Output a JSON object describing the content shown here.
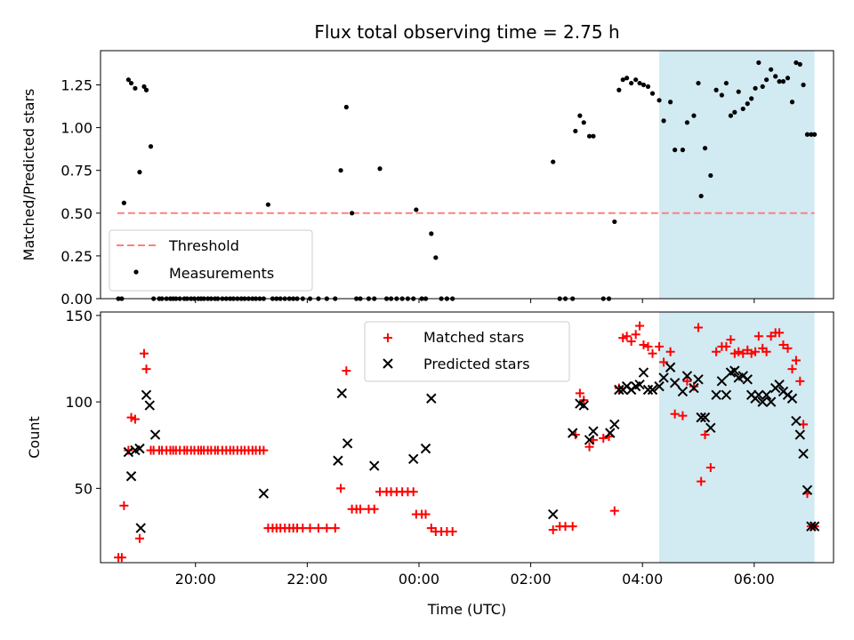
{
  "title": "Flux total observing time = 2.75 h",
  "xlabel": "Time (UTC)",
  "x_ticks": [
    "20:00",
    "22:00",
    "00:00",
    "02:00",
    "04:00",
    "06:00"
  ],
  "x_tick_hours": [
    20,
    22,
    24,
    26,
    28,
    30
  ],
  "xlim_hours": [
    18.3,
    31.42
  ],
  "shaded_region_hours": [
    28.3,
    31.08
  ],
  "colors": {
    "matched": "#ff0000",
    "predicted": "#000000",
    "threshold": "#ff8080",
    "shade": "#add8e6",
    "measurement": "#000000"
  },
  "chart_data": [
    {
      "type": "scatter",
      "ylabel": "Matched/Predicted stars",
      "ylim": [
        0,
        1.45
      ],
      "y_ticks": [
        "0.00",
        "0.25",
        "0.50",
        "0.75",
        "1.00",
        "1.25"
      ],
      "y_tick_values": [
        0,
        0.25,
        0.5,
        0.75,
        1.0,
        1.25
      ],
      "legend": {
        "placement": "lower-left",
        "entries": [
          "Threshold",
          "Measurements"
        ]
      },
      "threshold": {
        "name": "Threshold",
        "value": 0.5,
        "x_range_hours": [
          18.6,
          31.08
        ]
      },
      "series": [
        {
          "name": "Measurements",
          "x": [
            18.62,
            18.68,
            18.72,
            18.8,
            18.85,
            18.92,
            19.0,
            19.08,
            19.12,
            19.2,
            19.25,
            19.35,
            19.4,
            19.48,
            19.55,
            19.6,
            19.65,
            19.72,
            19.8,
            19.85,
            19.92,
            19.98,
            20.05,
            20.1,
            20.15,
            20.22,
            20.28,
            20.35,
            20.4,
            20.48,
            20.55,
            20.62,
            20.68,
            20.75,
            20.82,
            20.88,
            20.95,
            21.02,
            21.08,
            21.15,
            21.22,
            21.3,
            21.38,
            21.45,
            21.52,
            21.6,
            21.68,
            21.75,
            21.82,
            21.92,
            22.05,
            22.2,
            22.35,
            22.5,
            22.6,
            22.7,
            22.8,
            22.88,
            22.95,
            23.1,
            23.2,
            23.3,
            23.42,
            23.5,
            23.6,
            23.7,
            23.8,
            23.9,
            23.95,
            24.05,
            24.12,
            24.22,
            24.3,
            24.4,
            24.5,
            24.6,
            26.4,
            26.52,
            26.62,
            26.75,
            26.8,
            26.88,
            26.95,
            27.05,
            27.12,
            27.3,
            27.4,
            27.5,
            27.58,
            27.65,
            27.72,
            27.8,
            27.88,
            27.95,
            28.02,
            28.1,
            28.18,
            28.3,
            28.38,
            28.5,
            28.58,
            28.72,
            28.8,
            28.92,
            29.0,
            29.05,
            29.12,
            29.22,
            29.32,
            29.42,
            29.5,
            29.58,
            29.65,
            29.72,
            29.8,
            29.88,
            29.95,
            30.02,
            30.08,
            30.15,
            30.22,
            30.3,
            30.38,
            30.45,
            30.52,
            30.6,
            30.68,
            30.75,
            30.82,
            30.88,
            30.95,
            31.02,
            31.08
          ],
          "y": [
            0.0,
            0.0,
            0.56,
            1.28,
            1.26,
            1.23,
            0.74,
            1.24,
            1.22,
            0.89,
            0.0,
            0.0,
            0.0,
            0.0,
            0.0,
            0.0,
            0.0,
            0.0,
            0.0,
            0.0,
            0.0,
            0.0,
            0.0,
            0.0,
            0.0,
            0.0,
            0.0,
            0.0,
            0.0,
            0.0,
            0.0,
            0.0,
            0.0,
            0.0,
            0.0,
            0.0,
            0.0,
            0.0,
            0.0,
            0.0,
            0.0,
            0.55,
            0.0,
            0.0,
            0.0,
            0.0,
            0.0,
            0.0,
            0.0,
            0.0,
            0.0,
            0.0,
            0.0,
            0.0,
            0.75,
            1.12,
            0.5,
            0.0,
            0.0,
            0.0,
            0.0,
            0.76,
            0.0,
            0.0,
            0.0,
            0.0,
            0.0,
            0.0,
            0.52,
            0.0,
            0.0,
            0.38,
            0.24,
            0.0,
            0.0,
            0.0,
            0.8,
            0.0,
            0.0,
            0.0,
            0.98,
            1.07,
            1.03,
            0.95,
            0.95,
            0.0,
            0.0,
            0.45,
            1.22,
            1.28,
            1.29,
            1.26,
            1.28,
            1.26,
            1.25,
            1.24,
            1.2,
            1.16,
            1.04,
            1.15,
            0.87,
            0.87,
            1.03,
            1.07,
            1.26,
            0.6,
            0.88,
            0.72,
            1.22,
            1.19,
            1.26,
            1.07,
            1.09,
            1.21,
            1.11,
            1.14,
            1.17,
            1.23,
            1.38,
            1.24,
            1.28,
            1.34,
            1.3,
            1.27,
            1.27,
            1.29,
            1.15,
            1.38,
            1.37,
            1.25,
            0.96,
            0.96,
            0.96
          ]
        }
      ]
    },
    {
      "type": "scatter",
      "ylabel": "Count",
      "ylim": [
        7,
        152
      ],
      "y_ticks": [
        "50",
        "100",
        "150"
      ],
      "y_tick_values": [
        50,
        100,
        150
      ],
      "legend": {
        "placement": "upper-center",
        "entries": [
          "Matched stars",
          "Predicted stars"
        ]
      },
      "series": [
        {
          "name": "Matched stars",
          "x": [
            18.62,
            18.68,
            18.72,
            18.8,
            18.85,
            18.92,
            19.0,
            19.08,
            19.12,
            19.2,
            19.25,
            19.35,
            19.4,
            19.48,
            19.55,
            19.6,
            19.65,
            19.72,
            19.8,
            19.85,
            19.92,
            19.98,
            20.05,
            20.1,
            20.15,
            20.22,
            20.28,
            20.35,
            20.4,
            20.48,
            20.55,
            20.62,
            20.68,
            20.75,
            20.82,
            20.88,
            20.95,
            21.02,
            21.08,
            21.15,
            21.22,
            21.3,
            21.38,
            21.45,
            21.52,
            21.6,
            21.68,
            21.75,
            21.82,
            21.92,
            22.05,
            22.2,
            22.35,
            22.5,
            22.6,
            22.7,
            22.8,
            22.88,
            22.95,
            23.1,
            23.2,
            23.3,
            23.42,
            23.5,
            23.6,
            23.7,
            23.8,
            23.9,
            23.95,
            24.05,
            24.12,
            24.22,
            24.3,
            24.4,
            24.5,
            24.6,
            26.4,
            26.52,
            26.62,
            26.75,
            26.8,
            26.88,
            26.95,
            27.05,
            27.12,
            27.3,
            27.4,
            27.5,
            27.58,
            27.65,
            27.72,
            27.8,
            27.88,
            27.95,
            28.02,
            28.1,
            28.18,
            28.3,
            28.38,
            28.5,
            28.58,
            28.72,
            28.8,
            28.92,
            29.0,
            29.05,
            29.12,
            29.22,
            29.32,
            29.42,
            29.5,
            29.58,
            29.65,
            29.72,
            29.8,
            29.88,
            29.95,
            30.02,
            30.08,
            30.15,
            30.22,
            30.3,
            30.38,
            30.45,
            30.52,
            30.6,
            30.68,
            30.75,
            30.82,
            30.88,
            30.95,
            31.02,
            31.08
          ],
          "y": [
            10,
            10,
            40,
            72,
            91,
            90,
            21,
            128,
            119,
            72,
            72,
            72,
            72,
            72,
            72,
            72,
            72,
            72,
            72,
            72,
            72,
            72,
            72,
            72,
            72,
            72,
            72,
            72,
            72,
            72,
            72,
            72,
            72,
            72,
            72,
            72,
            72,
            72,
            72,
            72,
            72,
            27,
            27,
            27,
            27,
            27,
            27,
            27,
            27,
            27,
            27,
            27,
            27,
            27,
            50,
            118,
            38,
            38,
            38,
            38,
            38,
            48,
            48,
            48,
            48,
            48,
            48,
            48,
            35,
            35,
            35,
            27,
            25,
            25,
            25,
            25,
            26,
            28,
            28,
            28,
            81,
            105,
            101,
            74,
            78,
            79,
            80,
            37,
            108,
            137,
            138,
            135,
            139,
            144,
            133,
            132,
            128,
            132,
            123,
            129,
            93,
            92,
            112,
            109,
            143,
            54,
            81,
            62,
            129,
            132,
            132,
            136,
            128,
            129,
            128,
            130,
            128,
            129,
            138,
            131,
            129,
            138,
            140,
            140,
            133,
            131,
            119,
            124,
            112,
            87,
            47,
            28,
            28
          ]
        },
        {
          "name": "Predicted stars",
          "x": [
            18.8,
            18.85,
            18.92,
            19.0,
            19.02,
            19.12,
            19.18,
            19.28,
            21.22,
            22.55,
            22.62,
            22.72,
            23.2,
            23.9,
            24.12,
            24.22,
            26.4,
            26.75,
            26.88,
            26.95,
            27.05,
            27.12,
            27.42,
            27.5,
            27.58,
            27.65,
            27.72,
            27.8,
            27.88,
            27.95,
            28.02,
            28.1,
            28.18,
            28.3,
            28.38,
            28.5,
            28.58,
            28.72,
            28.8,
            28.92,
            29.0,
            29.05,
            29.12,
            29.22,
            29.32,
            29.42,
            29.5,
            29.58,
            29.65,
            29.72,
            29.8,
            29.88,
            29.95,
            30.02,
            30.08,
            30.15,
            30.22,
            30.3,
            30.38,
            30.45,
            30.52,
            30.6,
            30.68,
            30.75,
            30.82,
            30.88,
            30.95,
            31.02,
            31.08
          ],
          "y": [
            71,
            57,
            72,
            73,
            27,
            104,
            98,
            81,
            47,
            66,
            105,
            76,
            63,
            67,
            73,
            102,
            35,
            82,
            99,
            98,
            78,
            83,
            82,
            87,
            107,
            107,
            109,
            107,
            109,
            110,
            117,
            107,
            107,
            109,
            114,
            120,
            111,
            106,
            115,
            108,
            113,
            91,
            91,
            85,
            104,
            112,
            104,
            117,
            118,
            114,
            115,
            113,
            104,
            102,
            104,
            100,
            104,
            100,
            108,
            110,
            106,
            104,
            102,
            89,
            81,
            70,
            49,
            28,
            28
          ]
        }
      ]
    }
  ]
}
